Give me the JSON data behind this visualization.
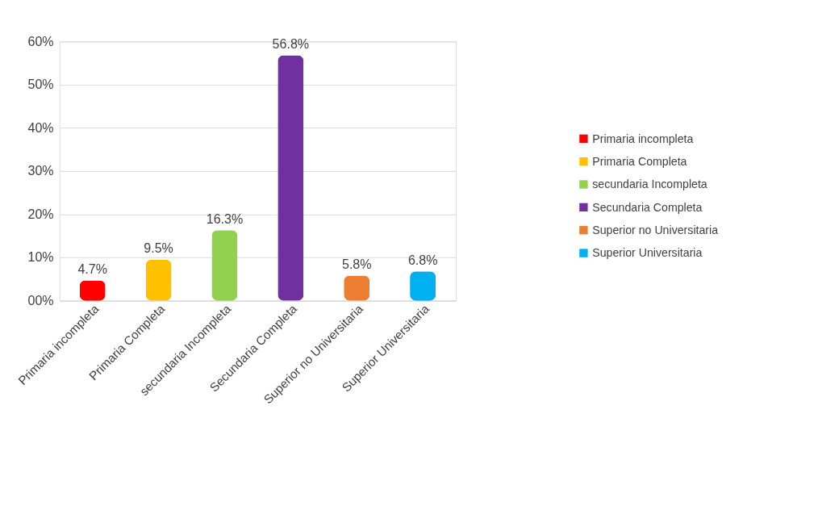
{
  "chart_data": {
    "type": "bar",
    "categories": [
      "Primaria incompleta",
      "Primaria Completa",
      "secundaria Incompleta",
      "Secundaria Completa",
      "Superior no Universitaria",
      "Superior Universitaria"
    ],
    "series": [
      {
        "name": "Primaria incompleta",
        "color": "#ff0000",
        "values": [
          4.7,
          null,
          null,
          null,
          null,
          null
        ],
        "value_labels": [
          "4.7%",
          null,
          null,
          null,
          null,
          null
        ]
      },
      {
        "name": "Primaria Completa",
        "color": "#ffc000",
        "values": [
          null,
          9.5,
          null,
          null,
          null,
          null
        ],
        "value_labels": [
          null,
          "9.5%",
          null,
          null,
          null,
          null
        ]
      },
      {
        "name": "secundaria Incompleta",
        "color": "#92d050",
        "values": [
          null,
          null,
          16.3,
          null,
          null,
          null
        ],
        "value_labels": [
          null,
          null,
          "16.3%",
          null,
          null,
          null
        ]
      },
      {
        "name": "Secundaria Completa",
        "color": "#7030a0",
        "values": [
          null,
          null,
          null,
          56.8,
          null,
          null
        ],
        "value_labels": [
          null,
          null,
          null,
          "56.8%",
          null,
          null
        ]
      },
      {
        "name": "Superior no Universitaria",
        "color": "#ed7d31",
        "values": [
          null,
          null,
          null,
          null,
          5.8,
          null
        ],
        "value_labels": [
          null,
          null,
          null,
          null,
          "5.8%",
          null
        ]
      },
      {
        "name": "Superior Universitaria",
        "color": "#00b0f0",
        "values": [
          null,
          null,
          null,
          null,
          null,
          6.8
        ],
        "value_labels": [
          null,
          null,
          null,
          null,
          null,
          "6.8%"
        ]
      }
    ],
    "stacked": true,
    "ylim": [
      0,
      60
    ],
    "yticks": [
      {
        "value": 0,
        "label": "00%"
      },
      {
        "value": 10,
        "label": "10%"
      },
      {
        "value": 20,
        "label": "20%"
      },
      {
        "value": 30,
        "label": "30%"
      },
      {
        "value": 40,
        "label": "40%"
      },
      {
        "value": 50,
        "label": "50%"
      },
      {
        "value": 60,
        "label": "60%"
      }
    ],
    "grid": "y",
    "legend": "right"
  }
}
